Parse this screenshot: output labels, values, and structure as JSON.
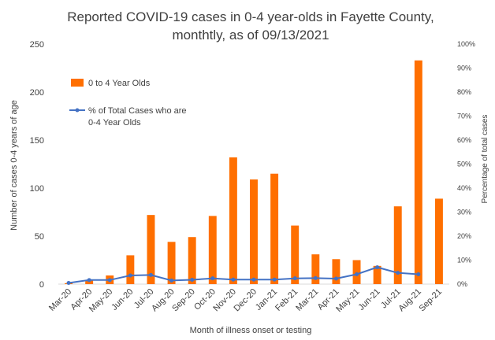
{
  "chart_data": {
    "type": "bar",
    "title_lines": [
      "Reported COVID-19 cases in 0-4 year-olds in Fayette County,",
      "monthtly, as of 09/13/2021"
    ],
    "xlabel": "Month of illness onset or testing",
    "ylabel": "Number of cases 0-4 years of age",
    "y2label": "Percentage of total cases",
    "categories": [
      "Mar-20",
      "Apr-20",
      "May-20",
      "Jun-20",
      "Jul-20",
      "Aug-20",
      "Sep-20",
      "Oct-20",
      "Nov-20",
      "Dec-20",
      "Jan-21",
      "Feb-21",
      "Mar-21",
      "Apr-21",
      "May-21",
      "Jun-21",
      "Jul-21",
      "Aug-21",
      "Sep-21"
    ],
    "ylim": [
      0,
      250
    ],
    "yticks": [
      "0",
      "50",
      "100",
      "150",
      "200",
      "250"
    ],
    "y2lim": [
      0,
      100
    ],
    "y2ticks": [
      "0%",
      "10%",
      "20%",
      "30%",
      "40%",
      "50%",
      "60%",
      "70%",
      "80%",
      "90%",
      "100%"
    ],
    "grid": false,
    "legend_position": "top-left",
    "series": [
      {
        "name": "0 to 4 Year Olds",
        "type": "bar",
        "axis": "left",
        "color": "#ff6f00",
        "values": [
          1,
          4,
          9,
          30,
          72,
          44,
          49,
          71,
          132,
          109,
          115,
          61,
          31,
          26,
          25,
          19,
          81,
          233,
          89
        ]
      },
      {
        "name_lines": [
          "% of Total Cases who are",
          "0-4 Year Olds"
        ],
        "type": "line",
        "axis": "right",
        "color": "#4472c4",
        "values": [
          0.5,
          1.7,
          1.7,
          3.6,
          3.8,
          1.5,
          1.8,
          2.4,
          1.9,
          1.9,
          1.9,
          2.4,
          2.5,
          2.3,
          4.1,
          7.0,
          4.7,
          4.1,
          null
        ]
      }
    ]
  }
}
